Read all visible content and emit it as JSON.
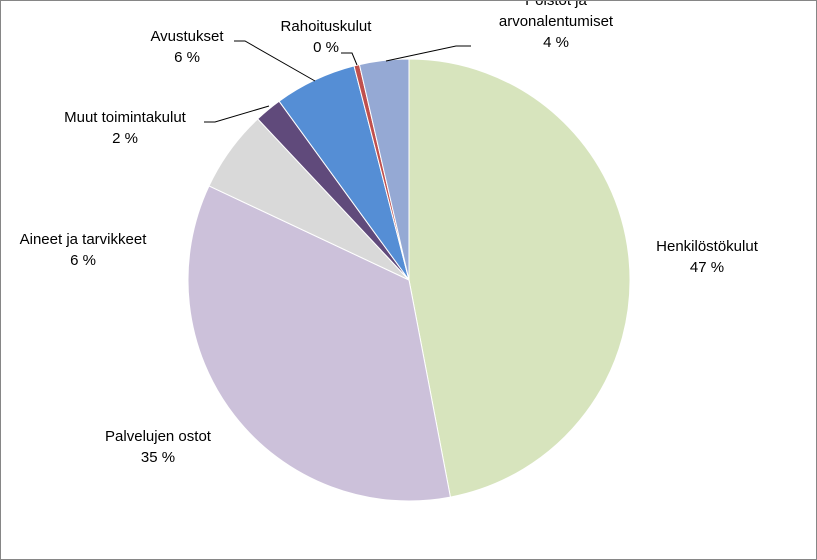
{
  "chart_data": {
    "type": "pie",
    "title": "",
    "legend": "none",
    "slices": [
      {
        "name": "Henkilöstökulut",
        "label_lines": [
          "Henkilöstökulut"
        ],
        "value": 47,
        "value_label": "47 %",
        "color": "#d7e4bd"
      },
      {
        "name": "Palvelujen ostot",
        "label_lines": [
          "Palvelujen ostot"
        ],
        "value": 35,
        "value_label": "35 %",
        "color": "#ccc1da"
      },
      {
        "name": "Aineet ja tarvikkeet",
        "label_lines": [
          "Aineet ja tarvikkeet"
        ],
        "value": 6,
        "value_label": "6 %",
        "color": "#d9d9d9"
      },
      {
        "name": "Muut toimintakulut",
        "label_lines": [
          "Muut toimintakulut"
        ],
        "value": 2,
        "value_label": "2 %",
        "color": "#604a7b"
      },
      {
        "name": "Avustukset",
        "label_lines": [
          "Avustukset"
        ],
        "value": 6,
        "value_label": "6 %",
        "color": "#558ed5"
      },
      {
        "name": "Rahoituskulut",
        "label_lines": [
          "Rahoituskulut"
        ],
        "value": 0.4,
        "value_label": "0 %",
        "color": "#c0504d"
      },
      {
        "name": "Poistot ja arvonalentumiset",
        "label_lines": [
          "Poistot ja",
          "arvonalentumiset"
        ],
        "value": 3.6,
        "value_label": "4 %",
        "color": "#95a9d4"
      }
    ]
  }
}
